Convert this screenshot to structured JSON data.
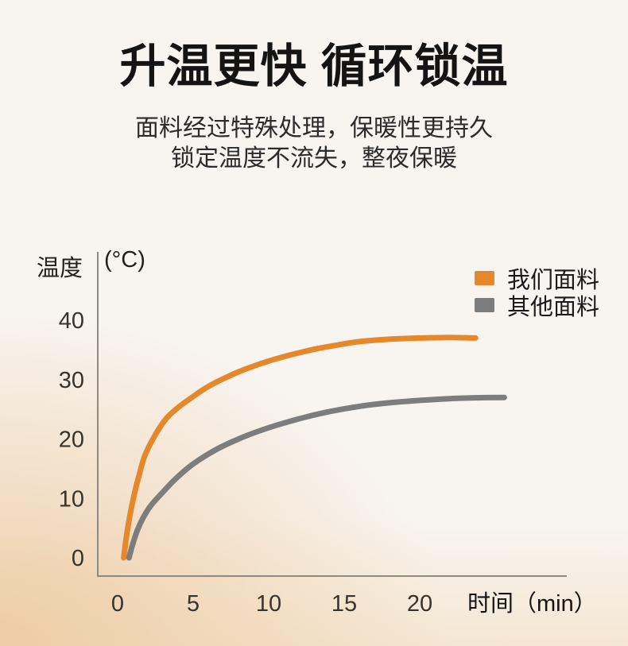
{
  "page": {
    "title": "升温更快 循环锁温",
    "subtitle_line1": "面料经过特殊处理，保暖性更持久",
    "subtitle_line2": "锁定温度不流失，整夜保暖"
  },
  "colors": {
    "background_base": "#f8f5f1",
    "background_warm": "#edcba2",
    "title_text": "#141414",
    "subtitle_text": "#2b2b2b",
    "axis": "#90897f",
    "tick_text": "#38332b",
    "accent_orange": "#e5882c",
    "line_gray": "#7d7d7d"
  },
  "chart_data": {
    "type": "line",
    "title": "",
    "ylabel": "温度",
    "ylabel_unit": "(°C)",
    "xlabel": "时间（min）",
    "xticks": [
      0,
      5,
      10,
      15,
      20
    ],
    "yticks": [
      0,
      10,
      20,
      30,
      40
    ],
    "xlim": [
      0,
      29
    ],
    "ylim": [
      0,
      45
    ],
    "grid": false,
    "legend_position": "top-right",
    "series": [
      {
        "name": "我们面料",
        "color": "#e5882c",
        "points": [
          [
            0.4,
            0
          ],
          [
            0.55,
            3
          ],
          [
            0.7,
            5.5
          ],
          [
            0.9,
            8.3
          ],
          [
            1.15,
            11.2
          ],
          [
            1.45,
            14.2
          ],
          [
            1.8,
            17.2
          ],
          [
            2.4,
            20.3
          ],
          [
            3.2,
            23.4
          ],
          [
            4.0,
            25.3
          ],
          [
            4.8,
            26.8
          ],
          [
            5.6,
            28.2
          ],
          [
            6.4,
            29.4
          ],
          [
            8.0,
            31.3
          ],
          [
            9.6,
            32.8
          ],
          [
            11.2,
            34.0
          ],
          [
            13.0,
            35.1
          ],
          [
            14.5,
            35.8
          ],
          [
            16.0,
            36.4
          ],
          [
            18.0,
            36.8
          ],
          [
            20.0,
            37.0
          ],
          [
            22.0,
            37.1
          ],
          [
            23.7,
            37.0
          ]
        ]
      },
      {
        "name": "其他面料",
        "color": "#7d7d7d",
        "points": [
          [
            0.75,
            0
          ],
          [
            1.0,
            2.3
          ],
          [
            1.3,
            4.6
          ],
          [
            1.7,
            6.8
          ],
          [
            2.2,
            8.8
          ],
          [
            2.9,
            10.8
          ],
          [
            3.8,
            13.2
          ],
          [
            5.0,
            15.8
          ],
          [
            6.5,
            18.2
          ],
          [
            8.0,
            20.0
          ],
          [
            9.2,
            21.2
          ],
          [
            10.5,
            22.3
          ],
          [
            12.0,
            23.4
          ],
          [
            14.0,
            24.6
          ],
          [
            16.0,
            25.5
          ],
          [
            18.0,
            26.1
          ],
          [
            20.0,
            26.5
          ],
          [
            22.0,
            26.8
          ],
          [
            24.0,
            26.95
          ],
          [
            25.6,
            27.0
          ]
        ]
      }
    ]
  }
}
